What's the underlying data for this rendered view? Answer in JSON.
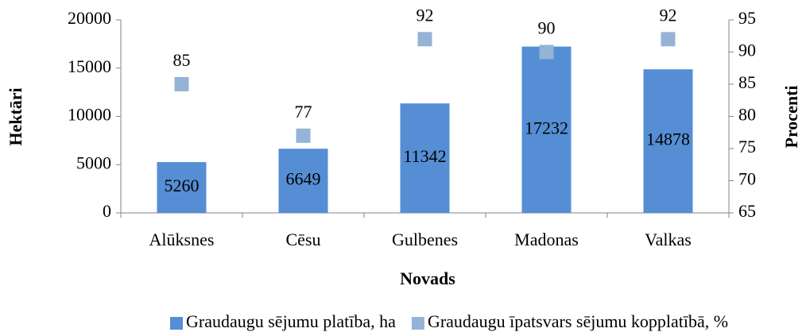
{
  "chart_data": {
    "type": "bar",
    "categories": [
      "Alūksnes",
      "Cēsu",
      "Gulbenes",
      "Madonas",
      "Valkas"
    ],
    "series": [
      {
        "name": "Graudaugu sējumu platība, ha",
        "type": "bar",
        "color": "#558ed5",
        "values": [
          5260,
          6649,
          11342,
          17232,
          14878
        ]
      },
      {
        "name": "Graudaugu īpatsvars sējumu kopplatībā, %",
        "type": "scatter",
        "axis": "y2",
        "color": "#95b3d7",
        "values": [
          85,
          77,
          92,
          90,
          92
        ]
      }
    ],
    "x_label": "Novads",
    "y_label": "Hektāri",
    "y2_label": "Procenti",
    "ylim": [
      0,
      20000
    ],
    "yticks": [
      0,
      5000,
      10000,
      15000,
      20000
    ],
    "y2lim": [
      65,
      95
    ],
    "y2ticks": [
      65,
      70,
      75,
      80,
      85,
      90,
      95
    ],
    "grid": false,
    "legend": "bottom"
  }
}
